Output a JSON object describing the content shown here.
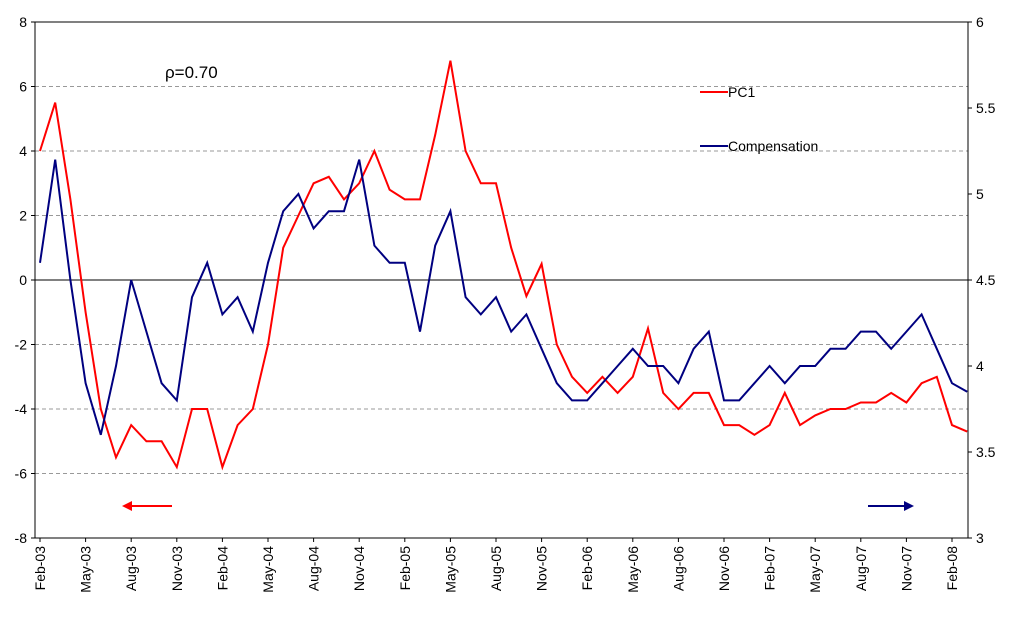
{
  "chart_data": {
    "type": "line",
    "annotation": "ρ=0.70",
    "categories": [
      "Feb-03",
      null,
      null,
      "May-03",
      null,
      null,
      "Aug-03",
      null,
      null,
      "Nov-03",
      null,
      null,
      "Feb-04",
      null,
      null,
      "May-04",
      null,
      null,
      "Aug-04",
      null,
      null,
      "Nov-04",
      null,
      null,
      "Feb-05",
      null,
      null,
      "May-05",
      null,
      null,
      "Aug-05",
      null,
      null,
      "Nov-05",
      null,
      null,
      "Feb-06",
      null,
      null,
      "May-06",
      null,
      null,
      "Aug-06",
      null,
      null,
      "Nov-06",
      null,
      null,
      "Feb-07",
      null,
      null,
      "May-07",
      null,
      null,
      "Aug-07",
      null,
      null,
      "Nov-07",
      null,
      null,
      "Feb-08",
      null
    ],
    "series": [
      {
        "name": "PC1",
        "color": "#ff0000",
        "values": [
          4,
          5.5,
          2.5,
          -1,
          -4,
          -5.5,
          -4.5,
          -5,
          -5,
          -5.8,
          -4,
          -4,
          -5.8,
          -4.5,
          -4,
          -2,
          1,
          2,
          3,
          3.2,
          2.5,
          3,
          4,
          2.8,
          2.5,
          2.5,
          4.5,
          6.8,
          4,
          3,
          3,
          1,
          -0.5,
          0.5,
          -2,
          -3,
          -3.5,
          -3,
          -3.5,
          -3,
          -1.5,
          -3.5,
          -4,
          -3.5,
          -3.5,
          -4.5,
          -4.5,
          -4.8,
          -4.5,
          -3.5,
          -4.5,
          -4.2,
          -4,
          -4,
          -3.8,
          -3.8,
          -3.5,
          -3.8,
          -3.2,
          -3,
          -4.5,
          -4.7
        ]
      },
      {
        "name": "Compensation",
        "color": "#000080",
        "axis": "y2",
        "values": [
          4.6,
          5.2,
          4.5,
          3.9,
          3.6,
          4.0,
          4.5,
          4.2,
          3.9,
          3.8,
          4.4,
          4.6,
          4.3,
          4.4,
          4.2,
          4.6,
          4.9,
          5.0,
          4.8,
          4.9,
          4.9,
          5.2,
          4.7,
          4.6,
          4.6,
          4.2,
          4.7,
          4.9,
          4.4,
          4.3,
          4.4,
          4.2,
          4.3,
          4.1,
          3.9,
          3.8,
          3.8,
          3.9,
          4.0,
          4.1,
          4.0,
          4.0,
          3.9,
          4.1,
          4.2,
          3.8,
          3.8,
          3.9,
          4.0,
          3.9,
          4.0,
          4.0,
          4.1,
          4.1,
          4.2,
          4.2,
          4.1,
          4.2,
          4.3,
          4.1,
          3.9,
          3.85
        ]
      }
    ],
    "ylim": [
      -8,
      8
    ],
    "yticks": [
      -8,
      -6,
      -4,
      -2,
      0,
      2,
      4,
      6,
      8
    ],
    "y2lim": [
      3,
      6
    ],
    "y2ticks": [
      3,
      3.5,
      4,
      4.5,
      5,
      5.5,
      6
    ],
    "grid": true,
    "legend_position": "upper right"
  }
}
